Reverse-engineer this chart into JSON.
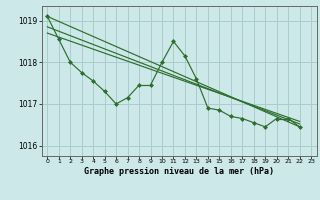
{
  "title": "Graphe pression niveau de la mer (hPa)",
  "background_color": "#cce8e8",
  "grid_color": "#aacccc",
  "line_color": "#2d6e2d",
  "xlim": [
    -0.5,
    23.5
  ],
  "ylim": [
    1015.75,
    1019.35
  ],
  "yticks": [
    1016,
    1017,
    1018,
    1019
  ],
  "xticks": [
    0,
    1,
    2,
    3,
    4,
    5,
    6,
    7,
    8,
    9,
    10,
    11,
    12,
    13,
    14,
    15,
    16,
    17,
    18,
    19,
    20,
    21,
    22,
    23
  ],
  "s1": [
    1019.1,
    1018.55,
    1018.0,
    1017.75,
    1017.55,
    1017.3,
    1017.0,
    1017.15,
    1017.45,
    1017.45,
    1018.0,
    1018.5,
    1018.15,
    1017.6,
    1016.9,
    1016.85,
    1016.7,
    1016.65,
    1016.55,
    1016.45,
    1016.65,
    1016.65,
    1016.45,
    null
  ],
  "trend_lines": [
    {
      "x": [
        0,
        22
      ],
      "y": [
        1019.1,
        1016.45
      ]
    },
    {
      "x": [
        0,
        22
      ],
      "y": [
        1018.85,
        1016.52
      ]
    },
    {
      "x": [
        0,
        22
      ],
      "y": [
        1018.7,
        1016.58
      ]
    }
  ]
}
